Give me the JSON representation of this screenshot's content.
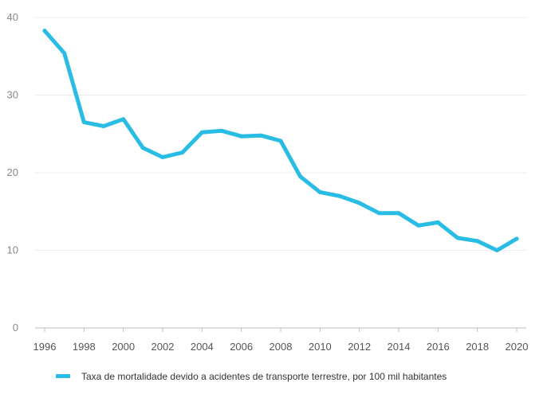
{
  "chart_data": {
    "type": "line",
    "title": "",
    "xlabel": "",
    "ylabel": "",
    "x": [
      1996,
      1997,
      1998,
      1999,
      2000,
      2001,
      2002,
      2003,
      2004,
      2005,
      2006,
      2007,
      2008,
      2009,
      2010,
      2011,
      2012,
      2013,
      2014,
      2015,
      2016,
      2017,
      2018,
      2019,
      2020
    ],
    "xticks": [
      "1996",
      "1998",
      "2000",
      "2002",
      "2004",
      "2006",
      "2008",
      "2010",
      "2012",
      "2014",
      "2016",
      "2018",
      "2020"
    ],
    "yticks": [
      "0",
      "10",
      "20",
      "30",
      "40"
    ],
    "ylim": [
      0,
      40
    ],
    "xlim": [
      1996,
      2020
    ],
    "grid": true,
    "legend_position": "bottom",
    "series": [
      {
        "name": "Taxa de mortalidade devido a acidentes de transporte terrestre, por 100 mil habitantes",
        "color": "#29BCE5",
        "values": [
          38.3,
          35.4,
          26.5,
          26.0,
          26.9,
          23.2,
          22.0,
          22.6,
          25.2,
          25.4,
          24.7,
          24.8,
          24.1,
          19.5,
          17.5,
          17.0,
          16.1,
          14.8,
          14.8,
          13.2,
          13.6,
          11.6,
          11.2,
          10.0,
          11.5
        ]
      }
    ]
  }
}
